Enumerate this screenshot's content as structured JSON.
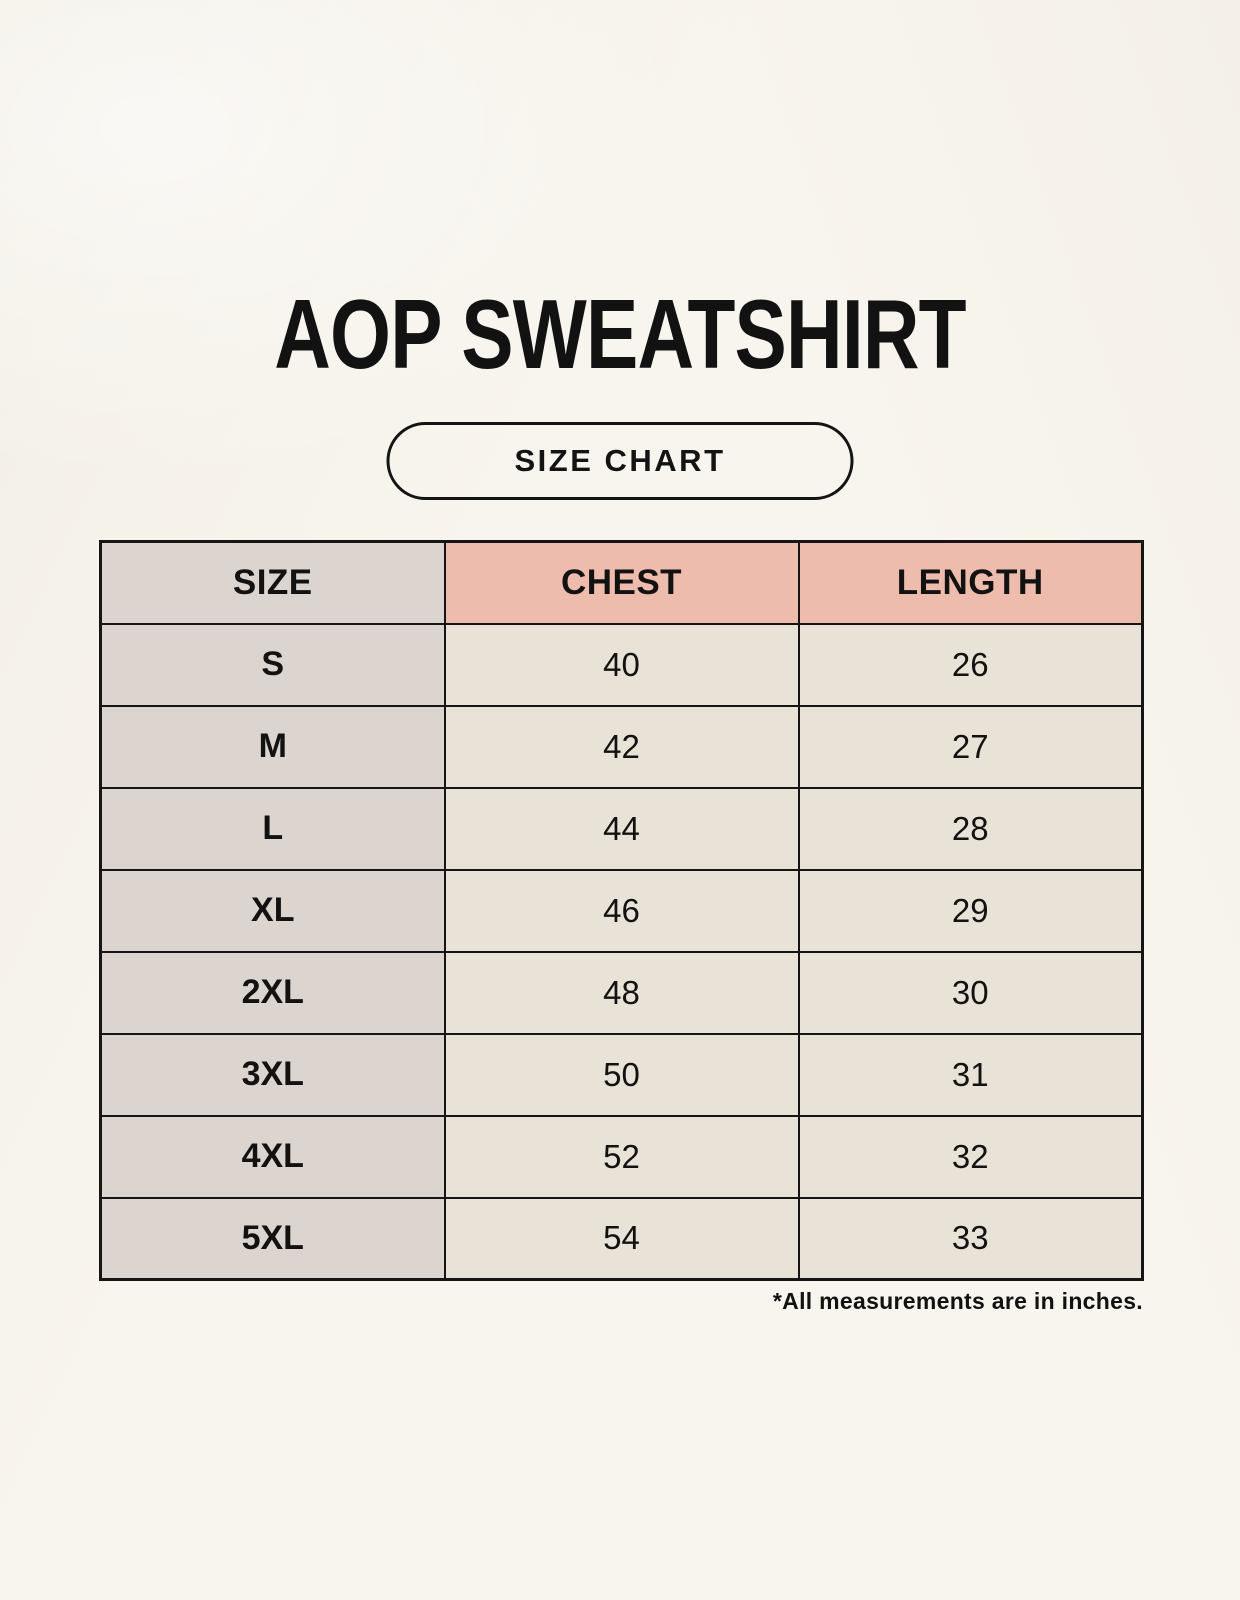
{
  "header": {
    "title": "AOP SWEATSHIRT",
    "badge_label": "SIZE CHART"
  },
  "chart_data": {
    "type": "table",
    "title": "AOP SWEATSHIRT",
    "subtitle": "SIZE CHART",
    "units": "inches",
    "columns": [
      "SIZE",
      "CHEST",
      "LENGTH"
    ],
    "rows": [
      {
        "size": "S",
        "chest": 40,
        "length": 26
      },
      {
        "size": "M",
        "chest": 42,
        "length": 27
      },
      {
        "size": "L",
        "chest": 44,
        "length": 28
      },
      {
        "size": "XL",
        "chest": 46,
        "length": 29
      },
      {
        "size": "2XL",
        "chest": 48,
        "length": 30
      },
      {
        "size": "3XL",
        "chest": 50,
        "length": 31
      },
      {
        "size": "4XL",
        "chest": 52,
        "length": 32
      },
      {
        "size": "5XL",
        "chest": 54,
        "length": 33
      }
    ]
  },
  "footnote": "*All measurements are in inches.",
  "colors": {
    "page_background": "#F8F5EE",
    "size_column_fill": "#DCD4CF",
    "measure_header_fill": "#EEBCAD",
    "data_cell_fill": "#E9E2D6",
    "table_border": "#151515",
    "text": "#121212"
  }
}
